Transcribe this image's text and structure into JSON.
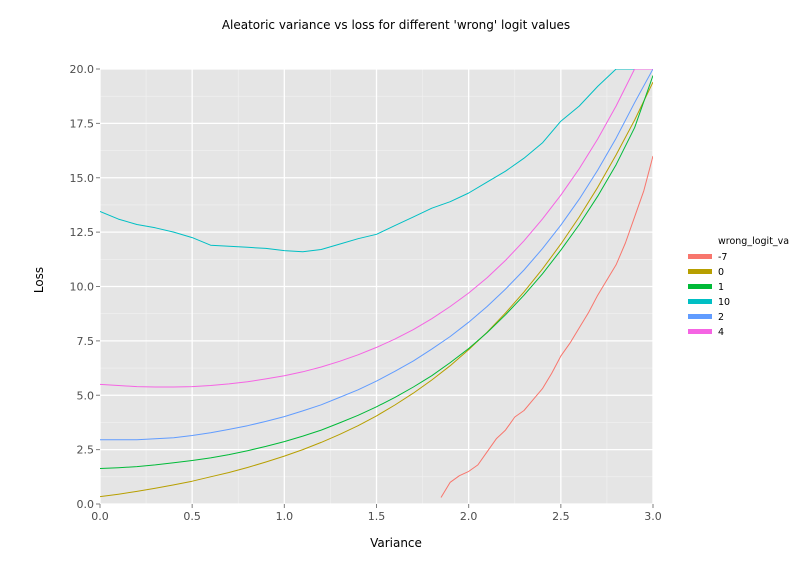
{
  "chart_data": {
    "type": "line",
    "title": "Aleatoric variance vs loss for different 'wrong' logit values",
    "xlabel": "Variance",
    "ylabel": "Loss",
    "xlim": [
      0,
      3
    ],
    "ylim": [
      0,
      20
    ],
    "x_ticks": [
      "0.0",
      "0.5",
      "1.0",
      "1.5",
      "2.0",
      "2.5",
      "3.0"
    ],
    "y_ticks": [
      "0.0",
      "2.5",
      "5.0",
      "7.5",
      "10.0",
      "12.5",
      "15.0",
      "17.5",
      "20.0"
    ],
    "grid": true,
    "legend": {
      "title": "wrong_logit_va",
      "position": "right",
      "entries": [
        "-7",
        "0",
        "1",
        "10",
        "2",
        "4"
      ]
    },
    "x": [
      0,
      0.1,
      0.2,
      0.3,
      0.4,
      0.5,
      0.6,
      0.7,
      0.8,
      0.9,
      1.0,
      1.1,
      1.2,
      1.3,
      1.4,
      1.5,
      1.6,
      1.7,
      1.8,
      1.9,
      2.0,
      2.1,
      2.2,
      2.3,
      2.4,
      2.5,
      2.6,
      2.7,
      2.8,
      2.9,
      3.0
    ],
    "series": [
      {
        "name": "-7",
        "color": "#F8766D",
        "x": [
          1.85,
          1.9,
          1.95,
          2.0,
          2.05,
          2.1,
          2.15,
          2.2,
          2.25,
          2.3,
          2.35,
          2.4,
          2.45,
          2.5,
          2.55,
          2.6,
          2.65,
          2.7,
          2.75,
          2.8,
          2.85,
          2.9,
          2.95,
          3.0
        ],
        "values": [
          0.3,
          1.0,
          1.3,
          1.5,
          1.8,
          2.4,
          3.0,
          3.4,
          4.0,
          4.3,
          4.8,
          5.3,
          6.0,
          6.8,
          7.4,
          8.1,
          8.8,
          9.6,
          10.3,
          11.0,
          12.0,
          13.2,
          14.4,
          16.0
        ]
      },
      {
        "name": "0",
        "color": "#B79F00",
        "values": [
          0.34,
          0.45,
          0.58,
          0.72,
          0.88,
          1.05,
          1.25,
          1.45,
          1.68,
          1.93,
          2.2,
          2.5,
          2.83,
          3.2,
          3.6,
          4.05,
          4.55,
          5.1,
          5.7,
          6.36,
          7.1,
          7.9,
          8.78,
          9.75,
          10.8,
          11.95,
          13.2,
          14.56,
          16.05,
          17.65,
          19.4
        ]
      },
      {
        "name": "1",
        "color": "#00BA38",
        "values": [
          1.63,
          1.67,
          1.72,
          1.8,
          1.9,
          2.0,
          2.12,
          2.27,
          2.45,
          2.65,
          2.87,
          3.12,
          3.4,
          3.73,
          4.08,
          4.47,
          4.9,
          5.38,
          5.9,
          6.5,
          7.15,
          7.88,
          8.7,
          9.6,
          10.58,
          11.67,
          12.85,
          14.15,
          15.6,
          17.3,
          19.7
        ]
      },
      {
        "name": "10",
        "color": "#00BFC4",
        "values": [
          13.45,
          13.1,
          12.85,
          12.7,
          12.5,
          12.25,
          11.9,
          11.85,
          11.8,
          11.75,
          11.65,
          11.6,
          11.7,
          11.95,
          12.2,
          12.4,
          12.8,
          13.2,
          13.6,
          13.9,
          14.3,
          14.8,
          15.3,
          15.9,
          16.6,
          17.6,
          18.3,
          19.2,
          20.0,
          20.0,
          20.0
        ]
      },
      {
        "name": "2",
        "color": "#619CFF",
        "values": [
          2.95,
          2.95,
          2.95,
          3.0,
          3.05,
          3.15,
          3.28,
          3.43,
          3.6,
          3.8,
          4.02,
          4.28,
          4.56,
          4.9,
          5.25,
          5.65,
          6.1,
          6.58,
          7.12,
          7.7,
          8.36,
          9.08,
          9.88,
          10.76,
          11.74,
          12.82,
          14.02,
          15.35,
          16.82,
          18.45,
          20.0
        ]
      },
      {
        "name": "4",
        "color": "#F564E3",
        "values": [
          5.5,
          5.45,
          5.4,
          5.38,
          5.38,
          5.4,
          5.45,
          5.52,
          5.62,
          5.75,
          5.9,
          6.08,
          6.3,
          6.56,
          6.86,
          7.2,
          7.58,
          8.02,
          8.52,
          9.08,
          9.7,
          10.4,
          11.2,
          12.1,
          13.1,
          14.2,
          15.42,
          16.78,
          18.3,
          20.0,
          20.0
        ]
      }
    ]
  }
}
